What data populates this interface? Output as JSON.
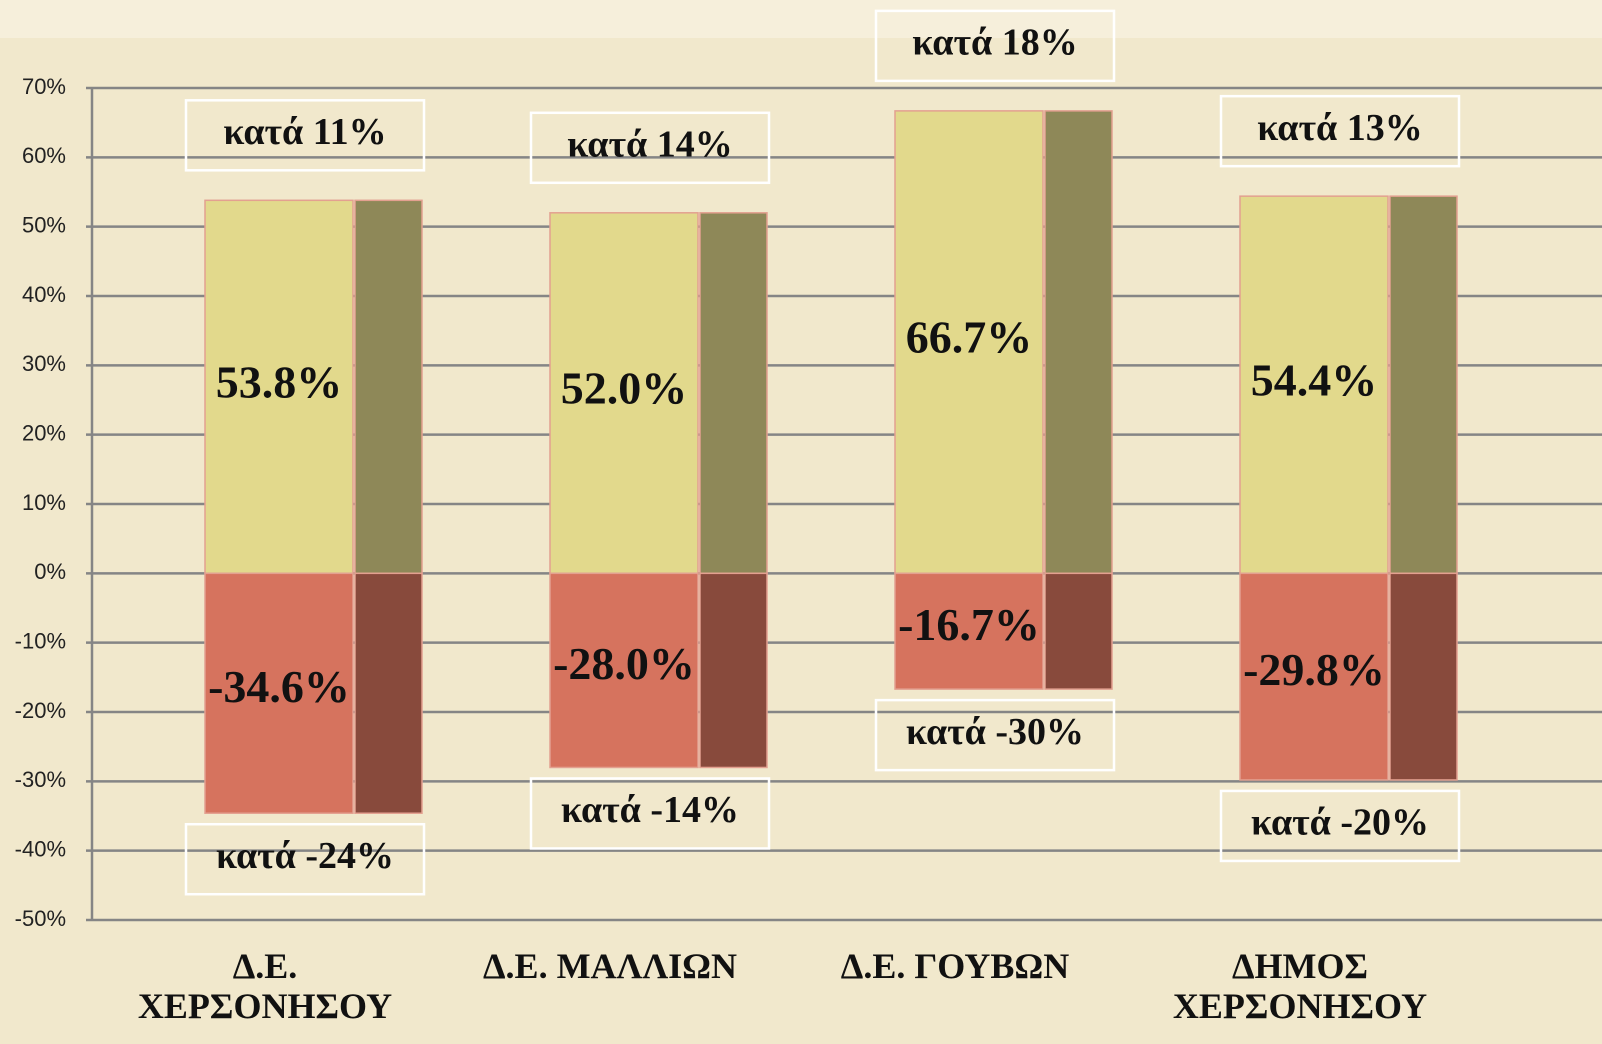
{
  "chart_data": {
    "type": "bar",
    "categories": [
      "Δ.Ε. ΧΕΡΣΟΝΗΣΟΥ",
      "Δ.Ε. ΜΑΛΛΙΩΝ",
      "Δ.Ε. ΓΟΥΒΩΝ",
      "ΔΗΜΟΣ ΧΕΡΣΟΝΗΣΟΥ"
    ],
    "series": [
      {
        "color": "#e2d98c",
        "values": [
          53.8,
          52.0,
          66.7,
          54.4
        ],
        "value_labels": [
          "53.8%",
          "52.0%",
          "66.7%",
          "54.4%"
        ]
      },
      {
        "color": "#8e8858",
        "values": [
          53.8,
          52.0,
          66.7,
          54.4
        ]
      },
      {
        "color": "#d6735e",
        "values": [
          -34.6,
          -28.0,
          -16.7,
          -29.8
        ],
        "value_labels": [
          "-34.6%",
          "-28.0%",
          "-16.7%",
          "-29.8%"
        ]
      },
      {
        "color": "#884a3c",
        "values": [
          -34.6,
          -28.0,
          -16.7,
          -29.8
        ]
      }
    ],
    "annotations_top": [
      "κατά 11%",
      "κατά 14%",
      "κατά 18%",
      "κατά 13%"
    ],
    "annotations_bottom": [
      "κατά -24%",
      "κατά -14%",
      "κατά -30%",
      "κατά -20%"
    ],
    "ylim": [
      -50,
      70
    ],
    "yticks": [
      {
        "value": -50,
        "label": "-50%"
      },
      {
        "value": -40,
        "label": "-40%"
      },
      {
        "value": -30,
        "label": "-30%"
      },
      {
        "value": -20,
        "label": "-20%"
      },
      {
        "value": -10,
        "label": "-10%"
      },
      {
        "value": 0,
        "label": "0%"
      },
      {
        "value": 10,
        "label": "10%"
      },
      {
        "value": 20,
        "label": "20%"
      },
      {
        "value": 30,
        "label": "30%"
      },
      {
        "value": 40,
        "label": "40%"
      },
      {
        "value": 50,
        "label": "50%"
      },
      {
        "value": 60,
        "label": "60%"
      },
      {
        "value": 70,
        "label": "70%"
      }
    ],
    "grid": true
  }
}
